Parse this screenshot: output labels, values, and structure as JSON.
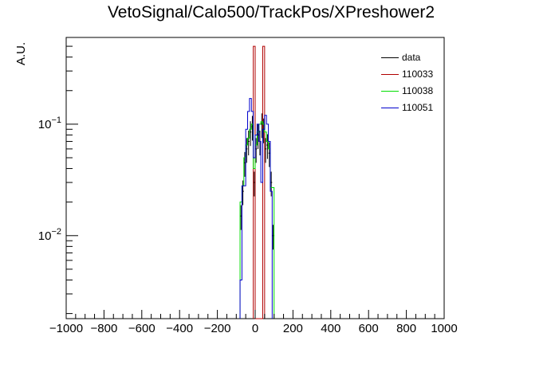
{
  "chart_data": {
    "type": "histogram-step",
    "title": "VetoSignal/Calo500/TrackPos/XPreshower2",
    "xlabel": "",
    "ylabel": "A.U.",
    "xlim": [
      -1000,
      1000
    ],
    "ylim": [
      0.0018,
      0.6
    ],
    "yscale": "log",
    "x_ticks": [
      -1000,
      -800,
      -600,
      -400,
      -200,
      0,
      200,
      400,
      600,
      800,
      1000
    ],
    "y_tick_labels": [
      {
        "value": 0.1,
        "base": "10",
        "exp": "−1"
      },
      {
        "value": 0.01,
        "base": "10",
        "exp": "−2"
      }
    ],
    "bin_width": 10,
    "legend_position": "top-right",
    "series": [
      {
        "name": "data",
        "color": "#000000",
        "style": "points-with-errors",
        "bins": [
          {
            "x": -80,
            "y": 0.015
          },
          {
            "x": -70,
            "y": 0.025
          },
          {
            "x": -60,
            "y": 0.045
          },
          {
            "x": -50,
            "y": 0.06
          },
          {
            "x": -40,
            "y": 0.07
          },
          {
            "x": -30,
            "y": 0.085
          },
          {
            "x": -20,
            "y": 0.095
          },
          {
            "x": -10,
            "y": 0.03
          },
          {
            "x": 0,
            "y": 0.06
          },
          {
            "x": 10,
            "y": 0.08
          },
          {
            "x": 20,
            "y": 0.07
          },
          {
            "x": 30,
            "y": 0.1
          },
          {
            "x": 40,
            "y": 0.09
          },
          {
            "x": 50,
            "y": 0.06
          },
          {
            "x": 60,
            "y": 0.065
          },
          {
            "x": 70,
            "y": 0.055
          },
          {
            "x": 80,
            "y": 0.03
          },
          {
            "x": 90,
            "y": 0.01
          }
        ]
      },
      {
        "name": "110033",
        "color": "#b00000",
        "style": "step",
        "bins": [
          {
            "x": -10,
            "y": 0.5
          },
          {
            "x": 0,
            "y": 0.0018
          },
          {
            "x": 10,
            "y": 0.0018
          },
          {
            "x": 20,
            "y": 0.0018
          },
          {
            "x": 30,
            "y": 0.0018
          },
          {
            "x": 40,
            "y": 0.5
          }
        ]
      },
      {
        "name": "110038",
        "color": "#00dd00",
        "style": "step",
        "bins": [
          {
            "x": -80,
            "y": 0.02
          },
          {
            "x": -70,
            "y": 0.028
          },
          {
            "x": -60,
            "y": 0.05
          },
          {
            "x": -50,
            "y": 0.065
          },
          {
            "x": -40,
            "y": 0.075
          },
          {
            "x": -30,
            "y": 0.09
          },
          {
            "x": -20,
            "y": 0.1
          },
          {
            "x": -10,
            "y": 0.04
          },
          {
            "x": 0,
            "y": 0.065
          },
          {
            "x": 10,
            "y": 0.085
          },
          {
            "x": 20,
            "y": 0.1
          },
          {
            "x": 30,
            "y": 0.105
          },
          {
            "x": 40,
            "y": 0.1
          },
          {
            "x": 50,
            "y": 0.085
          },
          {
            "x": 60,
            "y": 0.07
          },
          {
            "x": 70,
            "y": 0.06
          },
          {
            "x": 80,
            "y": 0.027
          },
          {
            "x": 90,
            "y": 0.027
          }
        ]
      },
      {
        "name": "110051",
        "color": "#0000cc",
        "style": "step",
        "bins": [
          {
            "x": -80,
            "y": 0.004
          },
          {
            "x": -70,
            "y": 0.028
          },
          {
            "x": -60,
            "y": 0.028
          },
          {
            "x": -50,
            "y": 0.09
          },
          {
            "x": -40,
            "y": 0.13
          },
          {
            "x": -30,
            "y": 0.17
          },
          {
            "x": -20,
            "y": 0.13
          },
          {
            "x": -10,
            "y": 0.05
          },
          {
            "x": 0,
            "y": 0.08
          },
          {
            "x": 10,
            "y": 0.1
          },
          {
            "x": 20,
            "y": 0.07
          },
          {
            "x": 30,
            "y": 0.03
          },
          {
            "x": 40,
            "y": 0.09
          },
          {
            "x": 50,
            "y": 0.12
          },
          {
            "x": 60,
            "y": 0.1
          },
          {
            "x": 70,
            "y": 0.07
          },
          {
            "x": 80,
            "y": 0.025
          }
        ]
      }
    ]
  }
}
